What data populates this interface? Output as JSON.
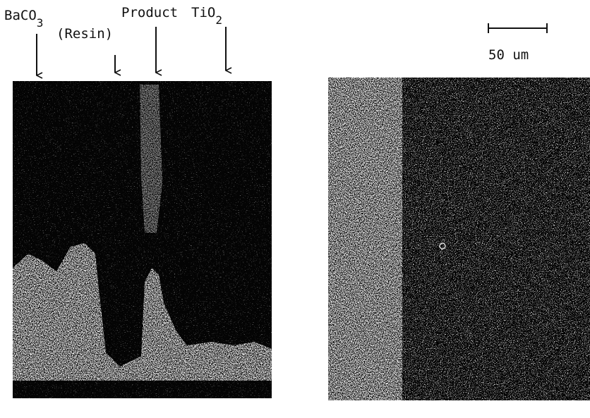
{
  "labels": {
    "baco3": {
      "text": "BaCO",
      "subscript": "3"
    },
    "resin": "(Resin)",
    "product": "Product",
    "tio2": {
      "text": "TiO",
      "subscript": "2"
    },
    "scale_bar": "50 um"
  }
}
